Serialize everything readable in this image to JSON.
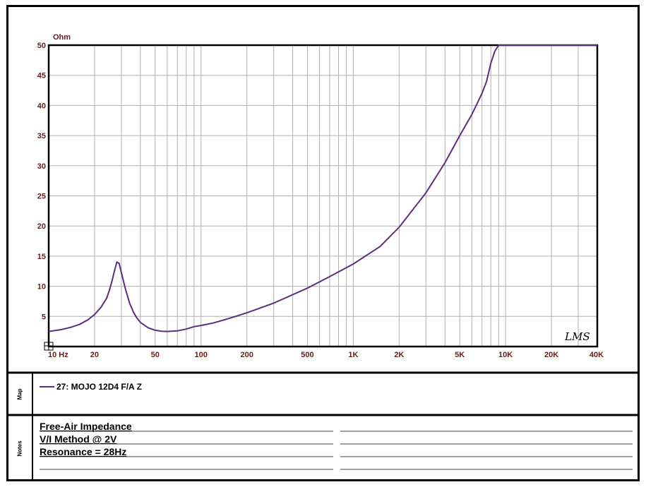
{
  "chart_data": {
    "type": "line",
    "ylabel_unit": "Ohm",
    "xscale": "log",
    "xlim": [
      10,
      40000
    ],
    "ylim": [
      0,
      50
    ],
    "grid": true,
    "x_ticks": [
      10,
      20,
      50,
      100,
      200,
      500,
      1000,
      2000,
      5000,
      10000,
      20000,
      40000
    ],
    "x_tick_labels": [
      "10 Hz",
      "20",
      "50",
      "100",
      "200",
      "500",
      "1K",
      "2K",
      "5K",
      "10K",
      "20K",
      "40K"
    ],
    "y_ticks": [
      5,
      10,
      15,
      20,
      25,
      30,
      35,
      40,
      45,
      50
    ],
    "y_tick_labels": [
      "5",
      "10",
      "15",
      "20",
      "25",
      "30",
      "35",
      "40",
      "45",
      "50"
    ],
    "series": [
      {
        "name": "27: MOJO 12D4 F/A  Z",
        "color": "#5a2d82",
        "x": [
          10,
          12,
          14,
          16,
          18,
          20,
          22,
          24,
          25,
          26,
          27,
          28,
          29,
          30,
          31,
          32,
          34,
          36,
          38,
          40,
          45,
          50,
          55,
          60,
          70,
          80,
          90,
          100,
          120,
          150,
          200,
          300,
          500,
          700,
          1000,
          1500,
          2000,
          3000,
          4000,
          5000,
          6000,
          7000,
          7500,
          8000,
          8500,
          9000,
          40000
        ],
        "y": [
          2.5,
          2.8,
          3.2,
          3.7,
          4.4,
          5.3,
          6.5,
          8.0,
          9.3,
          10.8,
          12.5,
          14.0,
          13.8,
          12.3,
          10.8,
          9.4,
          7.2,
          5.7,
          4.7,
          4.0,
          3.1,
          2.7,
          2.55,
          2.5,
          2.6,
          2.9,
          3.3,
          3.5,
          3.9,
          4.6,
          5.6,
          7.2,
          9.7,
          11.6,
          13.7,
          16.6,
          19.8,
          25.5,
          30.5,
          35.0,
          38.5,
          42.0,
          44.0,
          47.0,
          49.0,
          50.0,
          50.0
        ]
      }
    ]
  },
  "legend_entry": "27: MOJO 12D4 F/A  Z",
  "map_label": "Map",
  "notes_label": "Notes",
  "notes": [
    "Free-Air Impedance",
    "V/I Method @ 2V",
    "Resonance = 28Hz"
  ],
  "brand": "LMS"
}
